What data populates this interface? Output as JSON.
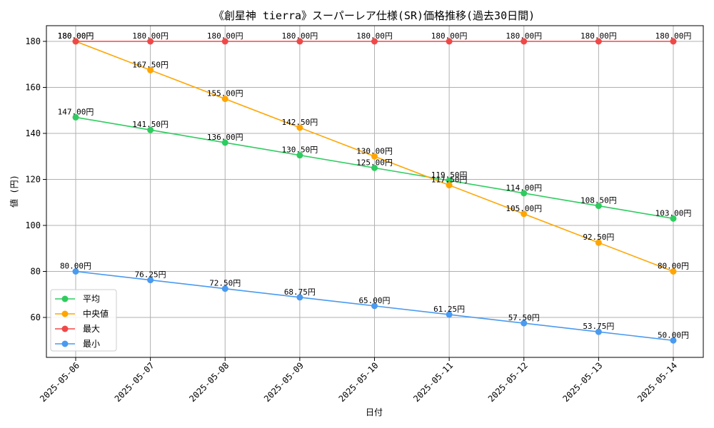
{
  "chart_data": {
    "type": "line",
    "title": "《創星神 tierra》スーパーレア仕様(SR)価格推移(過去30日間)",
    "xlabel": "日付",
    "ylabel": "値 (円)",
    "categories": [
      "2025-05-06",
      "2025-05-07",
      "2025-05-08",
      "2025-05-09",
      "2025-05-10",
      "2025-05-11",
      "2025-05-12",
      "2025-05-13",
      "2025-05-14"
    ],
    "ylim": [
      44,
      186
    ],
    "yticks": [
      60,
      80,
      100,
      120,
      140,
      160,
      180
    ],
    "grid": true,
    "legend_position": "lower-left",
    "series": [
      {
        "name": "平均",
        "color": "#2ecc5f",
        "values": [
          147.0,
          141.5,
          136.0,
          130.5,
          125.0,
          119.5,
          114.0,
          108.5,
          103.0
        ],
        "labels": [
          "147.00円",
          "141.50円",
          "136.00円",
          "130.50円",
          "125.00円",
          "119.50円",
          "114.00円",
          "108.50円",
          "103.00円"
        ]
      },
      {
        "name": "中央値",
        "color": "#ffa500",
        "values": [
          180.0,
          167.5,
          155.0,
          142.5,
          130.0,
          117.5,
          105.0,
          92.5,
          80.0
        ],
        "labels": [
          "180.00円",
          "167.50円",
          "155.00円",
          "142.50円",
          "130.00円",
          "117.50円",
          "105.00円",
          "92.50円",
          "80.00円"
        ]
      },
      {
        "name": "最大",
        "color": "#f04848",
        "values": [
          180.0,
          180.0,
          180.0,
          180.0,
          180.0,
          180.0,
          180.0,
          180.0,
          180.0
        ],
        "labels": [
          "180.00円",
          "180.00円",
          "180.00円",
          "180.00円",
          "180.00円",
          "180.00円",
          "180.00円",
          "180.00円",
          "180.00円"
        ]
      },
      {
        "name": "最小",
        "color": "#4a9af0",
        "values": [
          80.0,
          76.25,
          72.5,
          68.75,
          65.0,
          61.25,
          57.5,
          53.75,
          50.0
        ],
        "labels": [
          "80.00円",
          "76.25円",
          "72.50円",
          "68.75円",
          "65.00円",
          "61.25円",
          "57.50円",
          "53.75円",
          "50.00円"
        ]
      }
    ]
  }
}
